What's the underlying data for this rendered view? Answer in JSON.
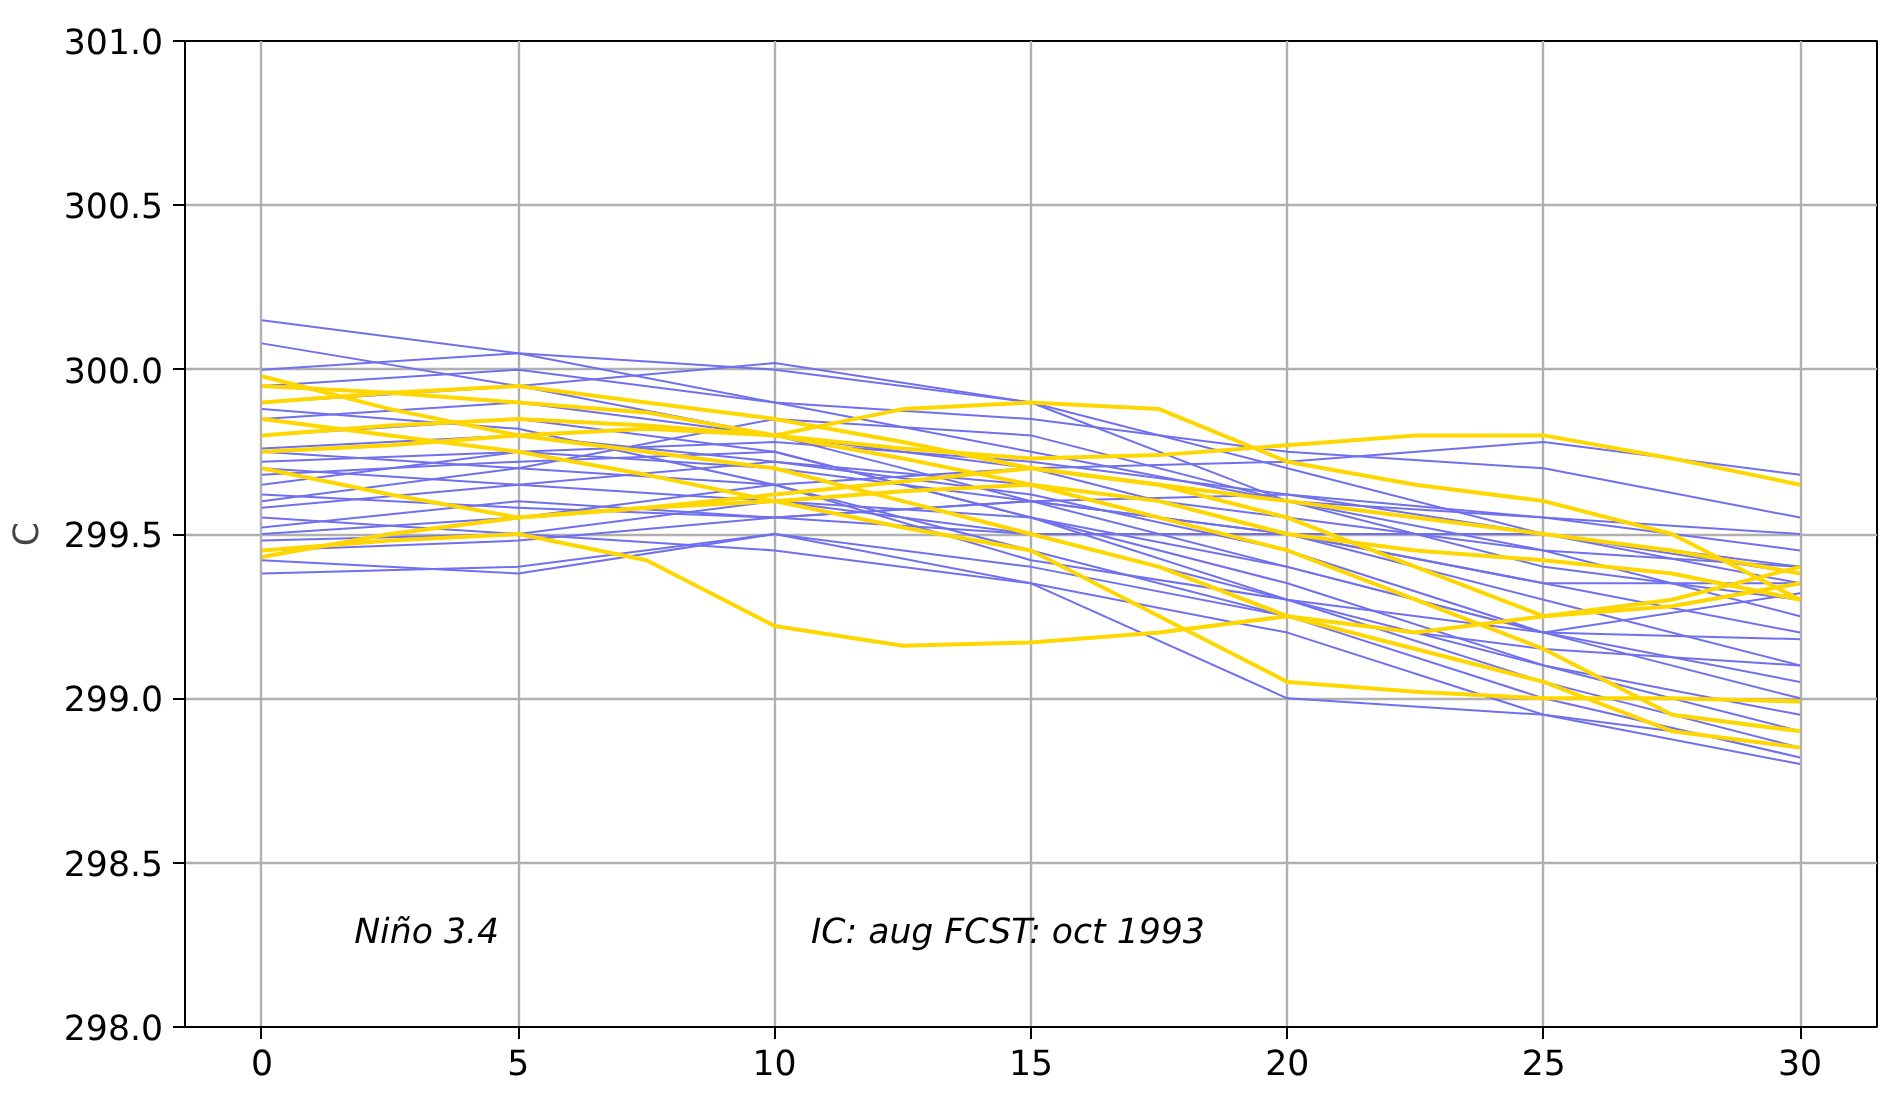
{
  "chart_data": {
    "type": "line",
    "ylabel": "C",
    "xlim": [
      -1.5,
      31.5
    ],
    "ylim": [
      298.0,
      301.0
    ],
    "xticks": [
      0,
      5,
      10,
      15,
      20,
      25,
      30
    ],
    "yticks": [
      {
        "value": 298,
        "label": "298.0"
      },
      {
        "value": 298.5,
        "label": "298.5"
      },
      {
        "value": 299,
        "label": "299.0"
      },
      {
        "value": 299.5,
        "label": "299.5"
      },
      {
        "value": 300,
        "label": "300.0"
      },
      {
        "value": 300.5,
        "label": "300.5"
      },
      {
        "value": 301,
        "label": "301.0"
      }
    ],
    "grid": true,
    "marker": "none",
    "line_style": "solid",
    "annotations": [
      "Niño 3.4",
      "IC: aug  FCST: oct 1993"
    ],
    "x": [
      0,
      5,
      10,
      15,
      20,
      25,
      30
    ],
    "series": [
      {
        "color": "#7070ee",
        "values": [
          300.15,
          300.05,
          299.9,
          299.75,
          299.6,
          299.55,
          299.45
        ]
      },
      {
        "color": "#7070ee",
        "values": [
          300.08,
          299.95,
          299.8,
          299.6,
          299.4,
          299.2,
          299.0
        ]
      },
      {
        "color": "#7070ee",
        "values": [
          300.0,
          300.05,
          300.0,
          299.9,
          299.7,
          299.5,
          299.35
        ]
      },
      {
        "color": "#7070ee",
        "values": [
          299.95,
          300.0,
          299.9,
          299.85,
          299.75,
          299.7,
          299.55
        ]
      },
      {
        "color": "#7070ee",
        "values": [
          299.9,
          299.95,
          300.02,
          299.9,
          299.6,
          299.4,
          299.3
        ]
      },
      {
        "color": "#7070ee",
        "values": [
          299.85,
          299.9,
          299.8,
          299.7,
          299.5,
          299.3,
          299.1
        ]
      },
      {
        "color": "#7070ee",
        "values": [
          299.8,
          299.85,
          299.75,
          299.55,
          299.3,
          299.1,
          298.9
        ]
      },
      {
        "color": "#7070ee",
        "values": [
          299.75,
          299.7,
          299.85,
          299.8,
          299.6,
          299.45,
          299.4
        ]
      },
      {
        "color": "#7070ee",
        "values": [
          299.72,
          299.75,
          299.7,
          299.6,
          299.5,
          299.35,
          299.2
        ]
      },
      {
        "color": "#7070ee",
        "values": [
          299.7,
          299.65,
          299.6,
          299.5,
          299.3,
          299.05,
          298.85
        ]
      },
      {
        "color": "#7070ee",
        "values": [
          299.65,
          299.75,
          299.78,
          299.72,
          299.62,
          299.55,
          299.5
        ]
      },
      {
        "color": "#7070ee",
        "values": [
          299.6,
          299.7,
          299.65,
          299.45,
          299.25,
          299.0,
          298.82
        ]
      },
      {
        "color": "#7070ee",
        "values": [
          299.58,
          299.65,
          299.72,
          299.65,
          299.55,
          299.45,
          299.25
        ]
      },
      {
        "color": "#7070ee",
        "values": [
          299.55,
          299.5,
          299.6,
          299.55,
          299.4,
          299.2,
          299.05
        ]
      },
      {
        "color": "#7070ee",
        "values": [
          299.52,
          299.6,
          299.55,
          299.5,
          299.5,
          299.5,
          299.4
        ]
      },
      {
        "color": "#7070ee",
        "values": [
          299.5,
          299.55,
          299.65,
          299.7,
          299.72,
          299.78,
          299.68
        ]
      },
      {
        "color": "#7070ee",
        "values": [
          299.48,
          299.5,
          299.45,
          299.35,
          299.2,
          298.95,
          298.8
        ]
      },
      {
        "color": "#7070ee",
        "values": [
          299.45,
          299.48,
          299.55,
          299.6,
          299.5,
          299.35,
          299.35
        ]
      },
      {
        "color": "#7070ee",
        "values": [
          299.42,
          299.38,
          299.5,
          299.35,
          299.0,
          298.95,
          298.85
        ]
      },
      {
        "color": "#7070ee",
        "values": [
          299.38,
          299.4,
          299.5,
          299.4,
          299.25,
          299.15,
          299.1
        ]
      },
      {
        "color": "#7070ee",
        "values": [
          299.76,
          299.8,
          299.72,
          299.62,
          299.45,
          299.2,
          299.18
        ]
      },
      {
        "color": "#7070ee",
        "values": [
          299.62,
          299.58,
          299.55,
          299.6,
          299.62,
          299.5,
          299.38
        ]
      },
      {
        "color": "#7070ee",
        "values": [
          299.88,
          299.82,
          299.65,
          299.42,
          299.3,
          299.2,
          299.32
        ]
      },
      {
        "color": "#7070ee",
        "values": [
          299.68,
          299.72,
          299.75,
          299.55,
          299.35,
          299.1,
          298.95
        ]
      },
      {
        "color": "#ffd700",
        "x": [
          0,
          2.5,
          5,
          7.5,
          10,
          12.5,
          15,
          17.5,
          20,
          22.5,
          25,
          27.5,
          30
        ],
        "values": [
          299.95,
          299.93,
          299.9,
          299.87,
          299.8,
          299.76,
          299.73,
          299.74,
          299.77,
          299.8,
          299.8,
          299.73,
          299.65
        ]
      },
      {
        "color": "#ffd700",
        "x": [
          0,
          2.5,
          5,
          7.5,
          10,
          12.5,
          15,
          17.5,
          20,
          22.5,
          25,
          27.5,
          30
        ],
        "values": [
          299.45,
          299.48,
          299.5,
          299.42,
          299.22,
          299.16,
          299.17,
          299.2,
          299.25,
          299.2,
          299.25,
          299.3,
          299.4
        ]
      },
      {
        "color": "#ffd700",
        "x": [
          0,
          2.5,
          5,
          7.5,
          10,
          12.5,
          15,
          17.5,
          20,
          22.5,
          25,
          27.5,
          30
        ],
        "values": [
          299.43,
          299.5,
          299.55,
          299.58,
          299.6,
          299.63,
          299.65,
          299.6,
          299.5,
          299.45,
          299.42,
          299.38,
          299.3
        ]
      },
      {
        "color": "#ffd700",
        "x": [
          0,
          2.5,
          5,
          7.5,
          10,
          12.5,
          15,
          17.5,
          20,
          22.5,
          25,
          27.5,
          30
        ],
        "values": [
          299.75,
          299.77,
          299.8,
          299.82,
          299.8,
          299.88,
          299.9,
          299.88,
          299.72,
          299.65,
          299.6,
          299.5,
          299.3
        ]
      },
      {
        "color": "#ffd700",
        "x": [
          0,
          2.5,
          5,
          7.5,
          10,
          12.5,
          15,
          17.5,
          20,
          22.5,
          25,
          27.5,
          30
        ],
        "values": [
          299.7,
          299.62,
          299.55,
          299.58,
          299.62,
          299.66,
          299.7,
          299.65,
          299.55,
          299.4,
          299.25,
          299.28,
          299.35
        ]
      },
      {
        "color": "#ffd700",
        "x": [
          0,
          2.5,
          5,
          7.5,
          10,
          12.5,
          15,
          17.5,
          20,
          22.5,
          25,
          27.5,
          30
        ],
        "values": [
          299.85,
          299.8,
          299.75,
          299.68,
          299.6,
          299.52,
          299.45,
          299.25,
          299.05,
          299.02,
          299.0,
          299.0,
          298.99
        ]
      },
      {
        "color": "#ffd700",
        "x": [
          0,
          2.5,
          5,
          7.5,
          10,
          12.5,
          15,
          17.5,
          20,
          22.5,
          25,
          27.5,
          30
        ],
        "values": [
          299.98,
          299.88,
          299.8,
          299.75,
          299.7,
          299.6,
          299.5,
          299.4,
          299.25,
          299.15,
          299.05,
          298.9,
          298.85
        ]
      },
      {
        "color": "#ffd700",
        "x": [
          0,
          2.5,
          5,
          7.5,
          10,
          12.5,
          15,
          17.5,
          20,
          22.5,
          25,
          27.5,
          30
        ],
        "values": [
          299.8,
          299.83,
          299.85,
          299.83,
          299.8,
          299.73,
          299.65,
          299.55,
          299.45,
          299.3,
          299.15,
          298.95,
          298.9
        ]
      },
      {
        "color": "#ffd700",
        "x": [
          0,
          2.5,
          5,
          7.5,
          10,
          12.5,
          15,
          17.5,
          20,
          22.5,
          25,
          27.5,
          30
        ],
        "values": [
          299.9,
          299.93,
          299.95,
          299.9,
          299.85,
          299.78,
          299.7,
          299.65,
          299.6,
          299.55,
          299.5,
          299.45,
          299.38
        ]
      }
    ]
  }
}
